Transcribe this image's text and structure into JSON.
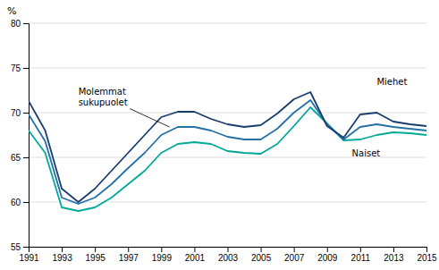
{
  "chart_data": {
    "type": "line",
    "y_label": "%",
    "x": [
      1991,
      1992,
      1993,
      1994,
      1995,
      1996,
      1997,
      1998,
      1999,
      2000,
      2001,
      2002,
      2003,
      2004,
      2005,
      2006,
      2007,
      2008,
      2009,
      2010,
      2011,
      2012,
      2013,
      2014,
      2015
    ],
    "series": [
      {
        "color": "#00a898",
        "values": [
          68.0,
          65.5,
          59.4,
          59.0,
          59.4,
          60.5,
          62.0,
          63.5,
          65.5,
          66.5,
          66.7,
          66.5,
          65.7,
          65.5,
          65.4,
          66.5,
          68.5,
          70.6,
          68.8,
          66.9,
          67.0,
          67.5,
          67.8,
          67.7,
          67.5
        ]
      },
      {
        "color": "#2471a8",
        "values": [
          69.8,
          66.8,
          60.5,
          59.8,
          60.5,
          62.0,
          63.8,
          65.5,
          67.5,
          68.4,
          68.4,
          68.0,
          67.3,
          67.0,
          67.0,
          68.2,
          70.0,
          71.4,
          68.7,
          67.0,
          68.4,
          68.7,
          68.4,
          68.2,
          68.0
        ]
      },
      {
        "color": "#1a3d6e",
        "values": [
          71.3,
          68.0,
          61.5,
          60.0,
          61.5,
          63.5,
          65.5,
          67.5,
          69.5,
          70.1,
          70.1,
          69.3,
          68.7,
          68.4,
          68.6,
          69.9,
          71.5,
          72.3,
          68.5,
          67.2,
          69.8,
          70.0,
          69.0,
          68.7,
          68.5
        ]
      }
    ],
    "xlim": [
      1991,
      2015
    ],
    "xticks": [
      1991,
      1993,
      1995,
      1997,
      1999,
      2001,
      2003,
      2005,
      2007,
      2009,
      2011,
      2013,
      2015
    ],
    "ylim": [
      55,
      80
    ],
    "yticks": [
      55,
      60,
      65,
      70,
      75,
      80
    ],
    "grid": true,
    "annotations": [
      {
        "text": "Molemmat\nsukupuolet",
        "x": 1994.0,
        "y": 71.8,
        "arrow_to": [
          1999.5,
          68.4
        ]
      },
      {
        "text": "Miehet",
        "x": 2012.0,
        "y": 73.5
      },
      {
        "text": "Naiset",
        "x": 2010.5,
        "y": 65.5
      }
    ]
  }
}
